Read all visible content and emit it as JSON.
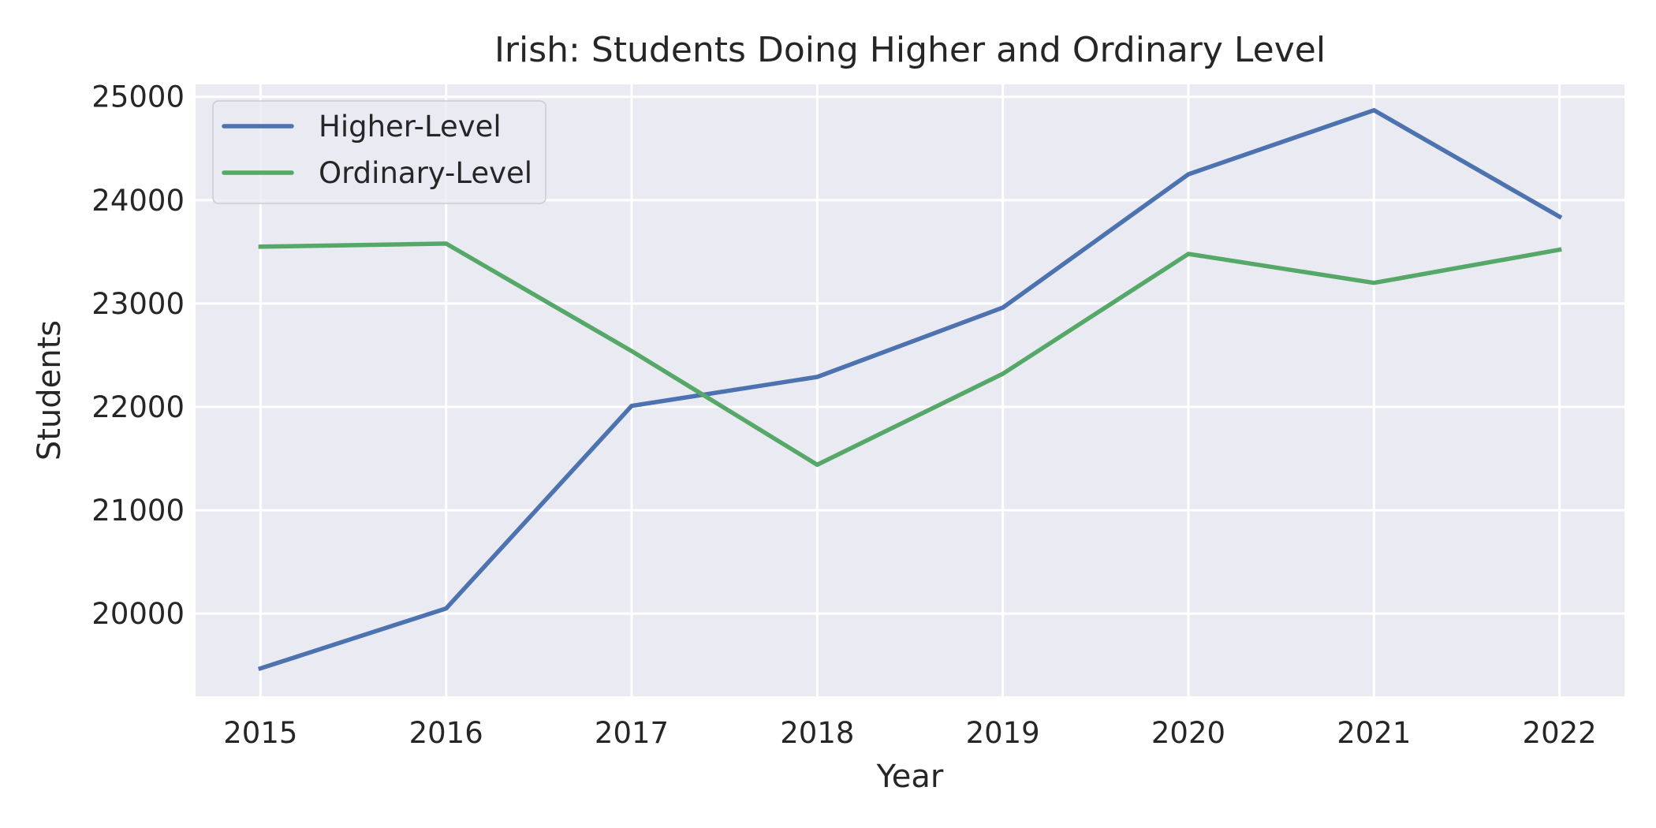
{
  "chart_data": {
    "type": "line",
    "title": "Irish: Students Doing Higher and Ordinary Level",
    "xlabel": "Year",
    "ylabel": "Students",
    "x": [
      2015,
      2016,
      2017,
      2018,
      2019,
      2020,
      2021,
      2022
    ],
    "x_tick_labels": [
      "2015",
      "2016",
      "2017",
      "2018",
      "2019",
      "2020",
      "2021",
      "2022"
    ],
    "xlim": [
      2014.65,
      2022.35
    ],
    "ylim": [
      19200,
      25120
    ],
    "y_ticks": [
      20000,
      21000,
      22000,
      23000,
      24000,
      25000
    ],
    "y_tick_labels": [
      "20000",
      "21000",
      "22000",
      "23000",
      "24000",
      "25000"
    ],
    "grid": true,
    "legend_position": "top-left",
    "background_color": "#eaeaf2",
    "series": [
      {
        "name": "Higher-Level",
        "color": "#4c72b0",
        "values": [
          19470,
          20050,
          22010,
          22290,
          22960,
          24250,
          24870,
          23840
        ]
      },
      {
        "name": "Ordinary-Level",
        "color": "#55a868",
        "values": [
          23550,
          23580,
          22540,
          21440,
          22320,
          23480,
          23200,
          23520
        ]
      }
    ]
  }
}
